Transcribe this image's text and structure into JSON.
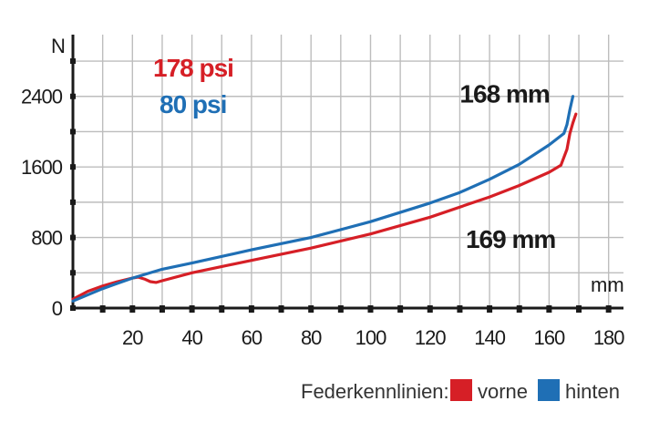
{
  "chart_data": {
    "type": "line",
    "title": "",
    "xlabel": "",
    "ylabel": "",
    "x_unit": "mm",
    "y_unit": "N",
    "xlim": [
      0,
      185
    ],
    "ylim": [
      0,
      3100
    ],
    "x_ticks": [
      20,
      40,
      60,
      80,
      100,
      120,
      140,
      160,
      180
    ],
    "y_ticks": [
      0,
      800,
      1600,
      2400
    ],
    "x_minor_ticks": [
      10,
      30,
      50,
      70,
      90,
      110,
      130,
      150,
      170
    ],
    "y_minor_ticks": [
      400,
      1200,
      2000,
      2800
    ],
    "grid": true,
    "series": [
      {
        "name": "vorne",
        "pressure_label": "178 psi",
        "color": "#d61f26",
        "x": [
          0,
          5,
          10,
          15,
          20,
          22,
          24,
          26,
          28,
          30,
          40,
          60,
          80,
          100,
          120,
          140,
          150,
          160,
          164,
          166,
          167,
          168,
          169
        ],
        "y": [
          100,
          190,
          250,
          300,
          340,
          350,
          330,
          300,
          290,
          310,
          400,
          540,
          680,
          840,
          1030,
          1260,
          1390,
          1540,
          1620,
          1800,
          1980,
          2100,
          2200
        ]
      },
      {
        "name": "hinten",
        "pressure_label": "80 psi",
        "color": "#1f6fb5",
        "x": [
          0,
          10,
          20,
          30,
          40,
          60,
          80,
          100,
          120,
          130,
          140,
          150,
          160,
          165,
          166,
          167,
          168
        ],
        "y": [
          80,
          220,
          340,
          440,
          510,
          660,
          800,
          980,
          1190,
          1310,
          1460,
          1630,
          1850,
          1980,
          2080,
          2250,
          2400
        ]
      }
    ],
    "annotations": [
      {
        "text": "168 mm",
        "x": 130,
        "y": 2330
      },
      {
        "text": "169 mm",
        "x": 132,
        "y": 680
      }
    ],
    "legend": {
      "title": "Federkennlinien:",
      "placement": "bottom-right"
    }
  }
}
